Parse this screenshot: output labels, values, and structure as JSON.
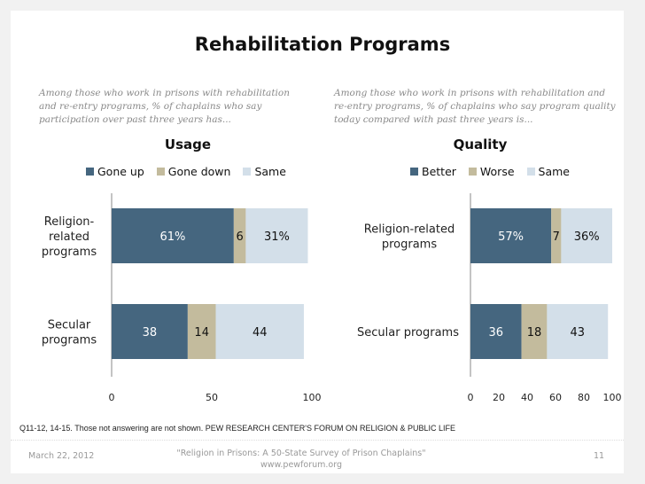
{
  "title": "Rehabilitation Programs",
  "colors": {
    "up": "#45667f",
    "down": "#c3bb9d",
    "same": "#d3dfe9"
  },
  "chart_data": [
    {
      "type": "bar",
      "orientation": "horizontal-stacked",
      "intro": "Among those who work in prisons with rehabilitation and re-entry programs, %  of chaplains who say participation over past three years has...",
      "title": "Usage",
      "categories": [
        "Religion-related programs",
        "Secular programs"
      ],
      "category_labels": [
        [
          "Religion-",
          "related",
          "programs"
        ],
        [
          "Secular",
          "programs"
        ]
      ],
      "series": [
        {
          "name": "Gone up",
          "values": [
            61,
            38
          ],
          "labels": [
            "61%",
            "38"
          ]
        },
        {
          "name": "Gone down",
          "values": [
            6,
            14
          ],
          "labels": [
            "6",
            "14"
          ]
        },
        {
          "name": "Same",
          "values": [
            31,
            44
          ],
          "labels": [
            "31%",
            "44"
          ]
        }
      ],
      "xlim": [
        0,
        100
      ],
      "xticks": [
        0,
        50,
        100
      ],
      "legend": "top",
      "grid": false
    },
    {
      "type": "bar",
      "orientation": "horizontal-stacked",
      "intro": "Among those who work in prisons with rehabilitation and re-entry programs, % of chaplains who say program quality today compared with past three years is...",
      "title": "Quality",
      "categories": [
        "Religion-related programs",
        "Secular programs"
      ],
      "category_labels": [
        [
          "Religion-related",
          "programs"
        ],
        [
          "Secular programs"
        ]
      ],
      "series": [
        {
          "name": "Better",
          "values": [
            57,
            36
          ],
          "labels": [
            "57%",
            "36"
          ]
        },
        {
          "name": "Worse",
          "values": [
            7,
            18
          ],
          "labels": [
            "7",
            "18"
          ]
        },
        {
          "name": "Same",
          "values": [
            36,
            43
          ],
          "labels": [
            "36%",
            "43"
          ]
        }
      ],
      "xlim": [
        0,
        100
      ],
      "xticks": [
        0,
        20,
        40,
        60,
        80,
        100
      ],
      "legend": "top",
      "grid": false
    }
  ],
  "footnote": "Q11-12, 14-15. Those not answering are not shown. PEW RESEARCH CENTER'S FORUM ON RELIGION & PUBLIC LIFE",
  "footer": {
    "date": "March 22, 2012",
    "report": "\"Religion in Prisons: A 50-State Survey of Prison Chaplains\"",
    "url": "www.pewforum.org",
    "page": "11"
  }
}
